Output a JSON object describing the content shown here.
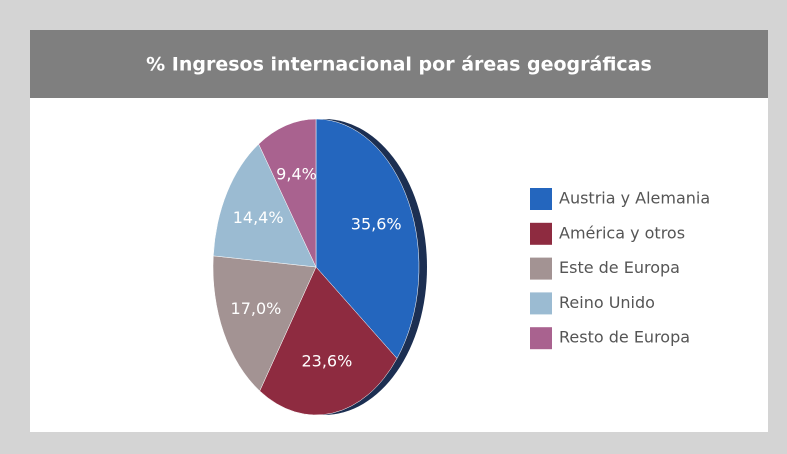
{
  "chart_data": {
    "type": "pie",
    "title": "% Ingresos internacional por áreas geográficas",
    "categories": [
      "Austria y Alemania",
      "América y otros",
      "Este de Europa",
      "Reino Unido",
      "Resto de Europa"
    ],
    "values": [
      35.6,
      23.6,
      17.0,
      14.4,
      9.4
    ],
    "value_labels": [
      "35,6%",
      "23,6%",
      "17,0%",
      "14,4%",
      "9,4%"
    ],
    "colors": [
      "#2466be",
      "#8e2b40",
      "#a39393",
      "#9bbbd2",
      "#a9628f"
    ],
    "legend": "right"
  }
}
